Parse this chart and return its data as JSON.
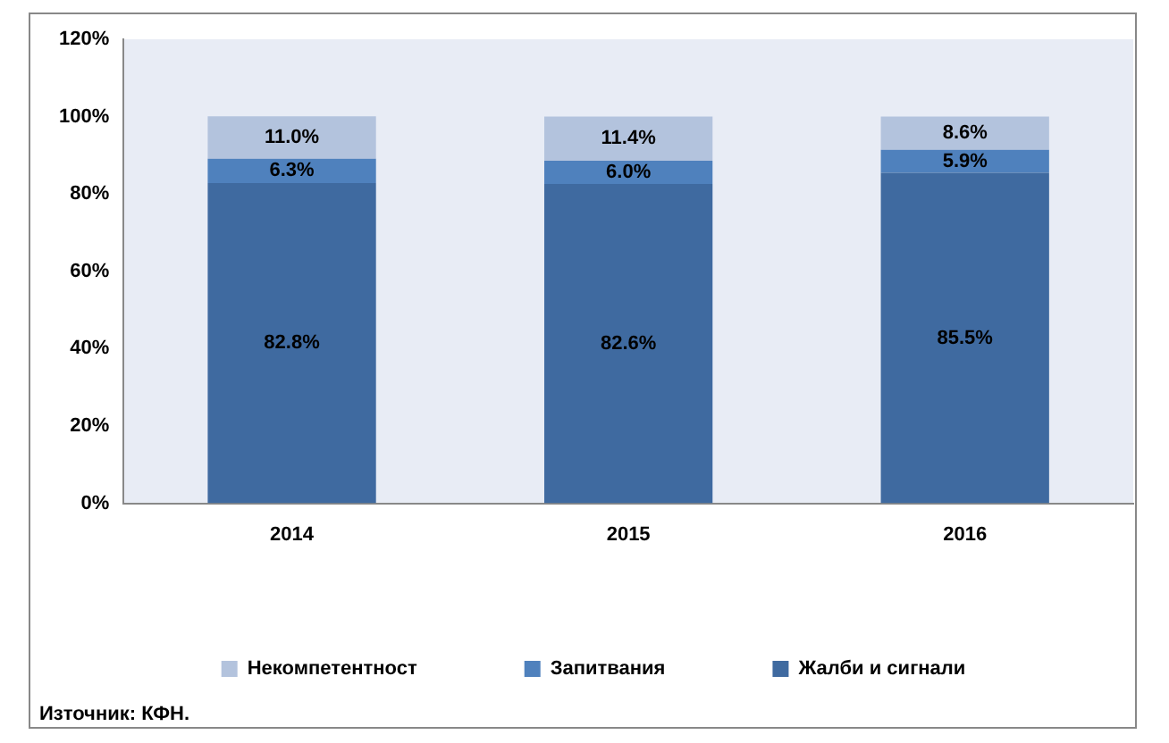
{
  "chart_data": {
    "type": "bar",
    "stacked": true,
    "categories": [
      "2014",
      "2015",
      "2016"
    ],
    "series": [
      {
        "name": "Жалби и сигнали",
        "color": "#3f6aa0",
        "values": [
          82.8,
          82.6,
          85.5
        ]
      },
      {
        "name": "Запитвания",
        "color": "#4f81bd",
        "values": [
          6.3,
          6.0,
          5.9
        ]
      },
      {
        "name": "Некомпетентност",
        "color": "#b3c3dd",
        "values": [
          11.0,
          11.4,
          8.6
        ]
      }
    ],
    "value_labels": [
      [
        "82.8%",
        "82.6%",
        "85.5%"
      ],
      [
        "6.3%",
        "6.0%",
        "5.9%"
      ],
      [
        "11.0%",
        "11.4%",
        "8.6%"
      ]
    ],
    "ylim": [
      0,
      120
    ],
    "yticks": [
      {
        "value": 0,
        "label": "0%"
      },
      {
        "value": 20,
        "label": "20%"
      },
      {
        "value": 40,
        "label": "40%"
      },
      {
        "value": 60,
        "label": "60%"
      },
      {
        "value": 80,
        "label": "80%"
      },
      {
        "value": 100,
        "label": "100%"
      },
      {
        "value": 120,
        "label": "120%"
      }
    ],
    "grid": false,
    "legend": "bottom",
    "annotations": [
      "Източник: КФН."
    ]
  }
}
